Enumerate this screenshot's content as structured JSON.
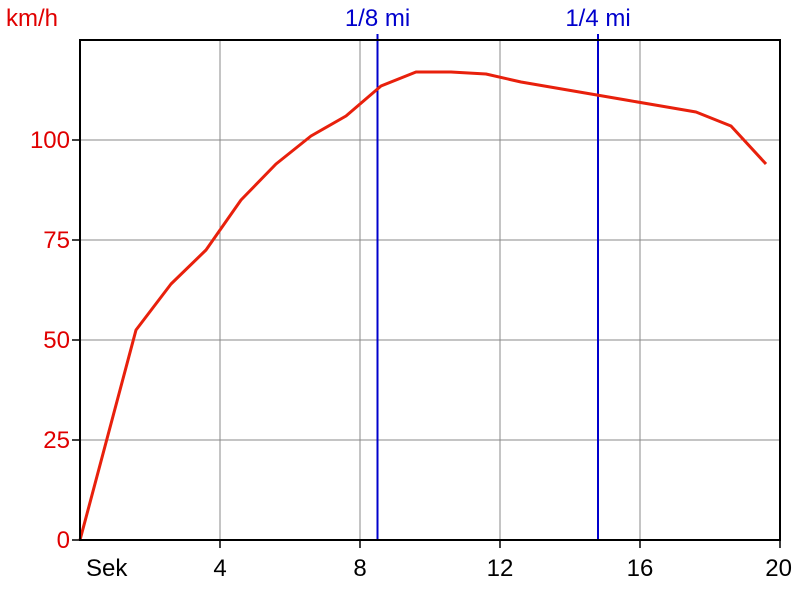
{
  "chart_data": {
    "type": "line",
    "ylabel": "km/h",
    "xlabel": "Sek",
    "xlim": [
      0,
      20
    ],
    "ylim": [
      0,
      125
    ],
    "x_ticks": [
      4,
      8,
      12,
      16,
      20
    ],
    "x_tick_labels": [
      "4",
      "8",
      "12",
      "16",
      "20"
    ],
    "y_ticks": [
      0,
      25,
      50,
      75,
      100
    ],
    "y_tick_labels": [
      "0",
      "25",
      "50",
      "75",
      "100"
    ],
    "grid": true,
    "colors": {
      "series": "#e8200c",
      "markers": "#0000cc",
      "ytext": "#e00000",
      "grid": "#888888"
    },
    "markers": [
      {
        "label": "1/8 mi",
        "x": 8.5
      },
      {
        "label": "1/4 mi",
        "x": 14.8
      }
    ],
    "series": [
      {
        "x": [
          0,
          1.6,
          2.6,
          3.6,
          4.6,
          5.6,
          6.6,
          7.6,
          8.6,
          9.6,
          10.6,
          11.6,
          12.6,
          13.6,
          14.6,
          15.6,
          16.6,
          17.6,
          18.6,
          19.6
        ],
        "y": [
          0,
          52.5,
          64,
          72.5,
          85,
          94,
          101,
          106,
          113.5,
          117,
          117,
          116.5,
          114.5,
          113,
          111.5,
          110,
          108.5,
          107,
          103.5,
          94
        ]
      }
    ]
  }
}
